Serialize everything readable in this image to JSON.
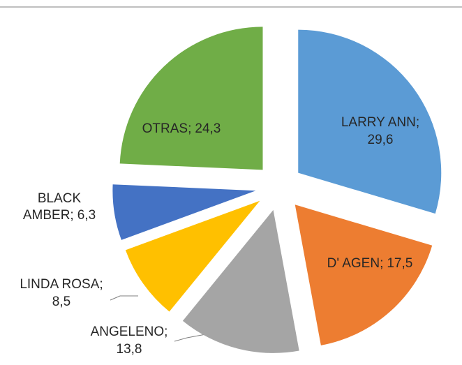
{
  "chart_data": {
    "type": "pie",
    "categories": [
      "LARRY ANN;",
      "D' AGEN;",
      "ANGELENO;",
      "LINDA ROSA;",
      "BLACK AMBER;",
      "OTRAS;"
    ],
    "values": [
      29.6,
      17.5,
      13.8,
      8.5,
      6.3,
      24.3
    ],
    "value_labels": [
      "29,6",
      "17,5",
      "13,8",
      "8,5",
      "6,3",
      "24,3"
    ],
    "colors": [
      "#5b9bd5",
      "#ed7d31",
      "#a5a5a5",
      "#ffc000",
      "#4472c4",
      "#70ad47"
    ]
  }
}
